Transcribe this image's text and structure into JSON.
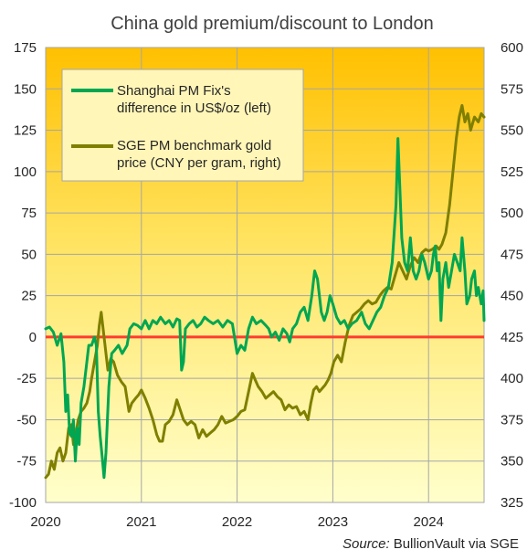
{
  "chart_data": {
    "type": "line",
    "title": "China gold premium/discount  to London",
    "source_label": "Source:",
    "source_text": "BullionVault  via SGE",
    "x_axis": {
      "ticks": [
        "2020",
        "2021",
        "2022",
        "2023",
        "2024"
      ],
      "range": [
        2020.0,
        2024.58
      ]
    },
    "y_left": {
      "range": [
        -100,
        175
      ],
      "ticks": [
        "175",
        "150",
        "125",
        "100",
        "75",
        "50",
        "25",
        "0",
        "-25",
        "-50",
        "-75",
        "-100"
      ]
    },
    "y_right": {
      "range": [
        325,
        600
      ],
      "ticks": [
        "600",
        "575",
        "550",
        "525",
        "500",
        "475",
        "450",
        "425",
        "400",
        "375",
        "350",
        "325"
      ]
    },
    "zero_line": 0,
    "colors": {
      "premium": "#00a651",
      "sge": "#7f7f00",
      "zero": "#ff3b30",
      "grid": "#a6a6a6",
      "bg_top": "#ffc000",
      "bg_bottom": "#ffffcc"
    },
    "legend": {
      "position": "top-left"
    },
    "series": [
      {
        "key": "premium",
        "legend_lines": [
          "Shanghai PM Fix's",
          "difference in US$/oz (left)"
        ],
        "axis": "left",
        "points": [
          [
            2020.0,
            5
          ],
          [
            2020.04,
            6
          ],
          [
            2020.08,
            3
          ],
          [
            2020.12,
            -5
          ],
          [
            2020.16,
            2
          ],
          [
            2020.19,
            -15
          ],
          [
            2020.21,
            -45
          ],
          [
            2020.23,
            -35
          ],
          [
            2020.25,
            -58
          ],
          [
            2020.27,
            -60
          ],
          [
            2020.29,
            -50
          ],
          [
            2020.31,
            -75
          ],
          [
            2020.33,
            -55
          ],
          [
            2020.35,
            -65
          ],
          [
            2020.37,
            -40
          ],
          [
            2020.4,
            -30
          ],
          [
            2020.43,
            -15
          ],
          [
            2020.45,
            -5
          ],
          [
            2020.48,
            -5
          ],
          [
            2020.51,
            0
          ],
          [
            2020.53,
            -5
          ],
          [
            2020.55,
            -45
          ],
          [
            2020.57,
            -60
          ],
          [
            2020.59,
            -72
          ],
          [
            2020.61,
            -85
          ],
          [
            2020.63,
            -70
          ],
          [
            2020.66,
            -30
          ],
          [
            2020.69,
            -10
          ],
          [
            2020.72,
            -8
          ],
          [
            2020.76,
            -5
          ],
          [
            2020.8,
            -10
          ],
          [
            2020.85,
            -5
          ],
          [
            2020.88,
            5
          ],
          [
            2020.92,
            8
          ],
          [
            2020.96,
            7
          ],
          [
            2021.0,
            5
          ],
          [
            2021.04,
            10
          ],
          [
            2021.08,
            5
          ],
          [
            2021.12,
            10
          ],
          [
            2021.16,
            8
          ],
          [
            2021.2,
            12
          ],
          [
            2021.25,
            8
          ],
          [
            2021.29,
            10
          ],
          [
            2021.33,
            6
          ],
          [
            2021.37,
            11
          ],
          [
            2021.4,
            10
          ],
          [
            2021.42,
            -20
          ],
          [
            2021.44,
            -15
          ],
          [
            2021.46,
            5
          ],
          [
            2021.5,
            8
          ],
          [
            2021.54,
            10
          ],
          [
            2021.58,
            6
          ],
          [
            2021.62,
            8
          ],
          [
            2021.66,
            12
          ],
          [
            2021.7,
            10
          ],
          [
            2021.75,
            8
          ],
          [
            2021.8,
            10
          ],
          [
            2021.85,
            6
          ],
          [
            2021.9,
            10
          ],
          [
            2021.95,
            8
          ],
          [
            2022.0,
            -10
          ],
          [
            2022.04,
            -5
          ],
          [
            2022.08,
            -8
          ],
          [
            2022.12,
            5
          ],
          [
            2022.16,
            12
          ],
          [
            2022.2,
            8
          ],
          [
            2022.25,
            10
          ],
          [
            2022.3,
            7
          ],
          [
            2022.33,
            5
          ],
          [
            2022.36,
            0
          ],
          [
            2022.4,
            3
          ],
          [
            2022.44,
            -2
          ],
          [
            2022.48,
            5
          ],
          [
            2022.52,
            2
          ],
          [
            2022.55,
            -3
          ],
          [
            2022.58,
            5
          ],
          [
            2022.62,
            8
          ],
          [
            2022.66,
            15
          ],
          [
            2022.7,
            18
          ],
          [
            2022.74,
            10
          ],
          [
            2022.78,
            25
          ],
          [
            2022.81,
            40
          ],
          [
            2022.84,
            35
          ],
          [
            2022.86,
            25
          ],
          [
            2022.88,
            15
          ],
          [
            2022.91,
            10
          ],
          [
            2022.94,
            15
          ],
          [
            2022.97,
            25
          ],
          [
            2023.0,
            20
          ],
          [
            2023.04,
            12
          ],
          [
            2023.08,
            8
          ],
          [
            2023.12,
            10
          ],
          [
            2023.16,
            5
          ],
          [
            2023.2,
            8
          ],
          [
            2023.25,
            10
          ],
          [
            2023.3,
            15
          ],
          [
            2023.34,
            8
          ],
          [
            2023.38,
            5
          ],
          [
            2023.42,
            10
          ],
          [
            2023.46,
            15
          ],
          [
            2023.5,
            18
          ],
          [
            2023.54,
            25
          ],
          [
            2023.58,
            30
          ],
          [
            2023.62,
            45
          ],
          [
            2023.66,
            80
          ],
          [
            2023.68,
            120
          ],
          [
            2023.7,
            90
          ],
          [
            2023.72,
            60
          ],
          [
            2023.75,
            45
          ],
          [
            2023.78,
            40
          ],
          [
            2023.81,
            60
          ],
          [
            2023.84,
            40
          ],
          [
            2023.87,
            35
          ],
          [
            2023.9,
            40
          ],
          [
            2023.93,
            50
          ],
          [
            2023.96,
            45
          ],
          [
            2024.0,
            35
          ],
          [
            2024.03,
            40
          ],
          [
            2024.05,
            50
          ],
          [
            2024.07,
            55
          ],
          [
            2024.09,
            40
          ],
          [
            2024.11,
            45
          ],
          [
            2024.13,
            10
          ],
          [
            2024.15,
            35
          ],
          [
            2024.18,
            45
          ],
          [
            2024.21,
            30
          ],
          [
            2024.24,
            40
          ],
          [
            2024.27,
            50
          ],
          [
            2024.3,
            45
          ],
          [
            2024.33,
            40
          ],
          [
            2024.35,
            60
          ],
          [
            2024.38,
            40
          ],
          [
            2024.4,
            20
          ],
          [
            2024.43,
            25
          ],
          [
            2024.45,
            35
          ],
          [
            2024.48,
            40
          ],
          [
            2024.5,
            25
          ],
          [
            2024.52,
            30
          ],
          [
            2024.55,
            20
          ],
          [
            2024.57,
            28
          ],
          [
            2024.58,
            10
          ]
        ]
      },
      {
        "key": "sge",
        "legend_lines": [
          "SGE PM benchmark gold",
          "price (CNY per gram, right)"
        ],
        "axis": "right",
        "points": [
          [
            2020.0,
            340
          ],
          [
            2020.03,
            342
          ],
          [
            2020.06,
            350
          ],
          [
            2020.09,
            345
          ],
          [
            2020.12,
            355
          ],
          [
            2020.15,
            358
          ],
          [
            2020.18,
            350
          ],
          [
            2020.21,
            355
          ],
          [
            2020.24,
            370
          ],
          [
            2020.27,
            372
          ],
          [
            2020.29,
            360
          ],
          [
            2020.31,
            365
          ],
          [
            2020.34,
            375
          ],
          [
            2020.37,
            380
          ],
          [
            2020.4,
            382
          ],
          [
            2020.43,
            385
          ],
          [
            2020.46,
            392
          ],
          [
            2020.48,
            400
          ],
          [
            2020.51,
            410
          ],
          [
            2020.54,
            420
          ],
          [
            2020.56,
            432
          ],
          [
            2020.58,
            440
          ],
          [
            2020.6,
            430
          ],
          [
            2020.62,
            420
          ],
          [
            2020.65,
            405
          ],
          [
            2020.68,
            412
          ],
          [
            2020.71,
            410
          ],
          [
            2020.75,
            402
          ],
          [
            2020.79,
            398
          ],
          [
            2020.83,
            395
          ],
          [
            2020.87,
            380
          ],
          [
            2020.9,
            385
          ],
          [
            2020.94,
            388
          ],
          [
            2020.97,
            390
          ],
          [
            2021.0,
            393
          ],
          [
            2021.04,
            388
          ],
          [
            2021.08,
            382
          ],
          [
            2021.12,
            375
          ],
          [
            2021.16,
            366
          ],
          [
            2021.19,
            362
          ],
          [
            2021.22,
            362
          ],
          [
            2021.25,
            372
          ],
          [
            2021.29,
            374
          ],
          [
            2021.33,
            378
          ],
          [
            2021.37,
            387
          ],
          [
            2021.4,
            382
          ],
          [
            2021.44,
            375
          ],
          [
            2021.48,
            372
          ],
          [
            2021.52,
            374
          ],
          [
            2021.56,
            372
          ],
          [
            2021.6,
            364
          ],
          [
            2021.64,
            369
          ],
          [
            2021.68,
            365
          ],
          [
            2021.72,
            367
          ],
          [
            2021.76,
            369
          ],
          [
            2021.8,
            372
          ],
          [
            2021.84,
            377
          ],
          [
            2021.88,
            373
          ],
          [
            2021.92,
            374
          ],
          [
            2021.96,
            375
          ],
          [
            2022.0,
            377
          ],
          [
            2022.04,
            380
          ],
          [
            2022.08,
            381
          ],
          [
            2022.12,
            392
          ],
          [
            2022.16,
            403
          ],
          [
            2022.19,
            399
          ],
          [
            2022.22,
            395
          ],
          [
            2022.26,
            392
          ],
          [
            2022.3,
            388
          ],
          [
            2022.34,
            390
          ],
          [
            2022.38,
            392
          ],
          [
            2022.42,
            389
          ],
          [
            2022.46,
            387
          ],
          [
            2022.5,
            381
          ],
          [
            2022.54,
            384
          ],
          [
            2022.58,
            382
          ],
          [
            2022.62,
            383
          ],
          [
            2022.66,
            378
          ],
          [
            2022.7,
            380
          ],
          [
            2022.74,
            375
          ],
          [
            2022.77,
            385
          ],
          [
            2022.8,
            393
          ],
          [
            2022.83,
            395
          ],
          [
            2022.86,
            392
          ],
          [
            2022.89,
            394
          ],
          [
            2022.92,
            396
          ],
          [
            2022.95,
            399
          ],
          [
            2022.98,
            403
          ],
          [
            2023.01,
            410
          ],
          [
            2023.05,
            414
          ],
          [
            2023.09,
            410
          ],
          [
            2023.13,
            422
          ],
          [
            2023.17,
            432
          ],
          [
            2023.21,
            438
          ],
          [
            2023.25,
            440
          ],
          [
            2023.29,
            442
          ],
          [
            2023.33,
            445
          ],
          [
            2023.37,
            447
          ],
          [
            2023.41,
            445
          ],
          [
            2023.45,
            446
          ],
          [
            2023.49,
            450
          ],
          [
            2023.53,
            453
          ],
          [
            2023.57,
            455
          ],
          [
            2023.61,
            454
          ],
          [
            2023.65,
            462
          ],
          [
            2023.69,
            470
          ],
          [
            2023.73,
            465
          ],
          [
            2023.77,
            460
          ],
          [
            2023.81,
            468
          ],
          [
            2023.85,
            473
          ],
          [
            2023.89,
            470
          ],
          [
            2023.93,
            476
          ],
          [
            2023.97,
            478
          ],
          [
            2024.0,
            477
          ],
          [
            2024.04,
            478
          ],
          [
            2024.08,
            480
          ],
          [
            2024.11,
            478
          ],
          [
            2024.14,
            481
          ],
          [
            2024.18,
            488
          ],
          [
            2024.22,
            505
          ],
          [
            2024.26,
            528
          ],
          [
            2024.29,
            545
          ],
          [
            2024.32,
            558
          ],
          [
            2024.35,
            565
          ],
          [
            2024.38,
            555
          ],
          [
            2024.41,
            560
          ],
          [
            2024.44,
            550
          ],
          [
            2024.48,
            558
          ],
          [
            2024.52,
            555
          ],
          [
            2024.55,
            560
          ],
          [
            2024.58,
            558
          ]
        ]
      }
    ]
  }
}
